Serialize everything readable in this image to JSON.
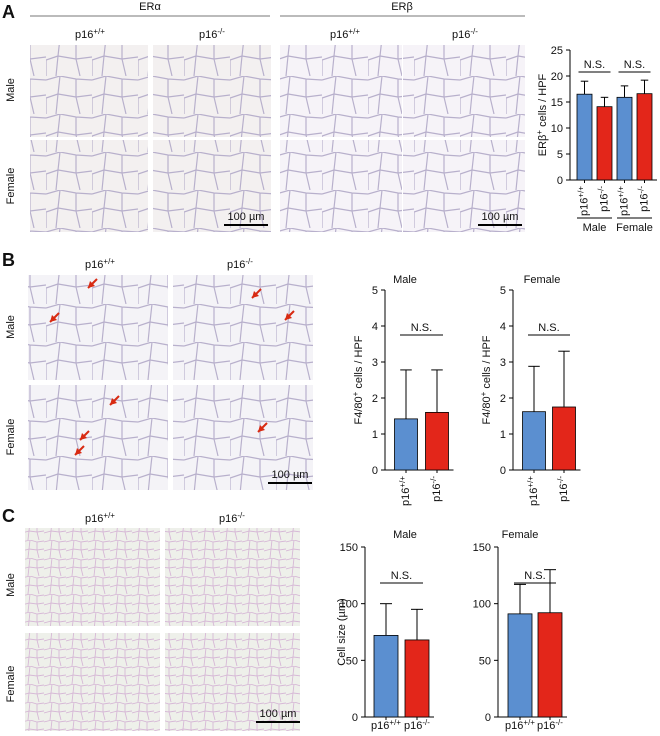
{
  "figure": {
    "panels": [
      "A",
      "B",
      "C"
    ],
    "panel_a": {
      "stains": [
        "ERα",
        "ERβ"
      ],
      "genotypes": [
        {
          "text": "p16",
          "sup": "+/+"
        },
        {
          "text": "p16",
          "sup": "-/-"
        }
      ],
      "rows": [
        "Male",
        "Female"
      ],
      "scale_bar": "100 µm"
    },
    "panel_b": {
      "genotypes": [
        {
          "text": "p16",
          "sup": "+/+"
        },
        {
          "text": "p16",
          "sup": "-/-"
        }
      ],
      "rows": [
        "Male",
        "Female"
      ],
      "scale_bar": "100 µm"
    },
    "panel_c": {
      "genotypes": [
        {
          "text": "p16",
          "sup": "+/+"
        },
        {
          "text": "p16",
          "sup": "-/-"
        }
      ],
      "rows": [
        "Male",
        "Female"
      ],
      "scale_bar": "100 µm"
    }
  },
  "chart_data": [
    {
      "type": "bar",
      "y_label": {
        "text": "ERβ",
        "sup": "+",
        "after": " cells / HPF"
      },
      "categories": [
        {
          "text": "p16",
          "sup": "+/+"
        },
        {
          "text": "p16",
          "sup": "-/-"
        },
        {
          "text": "p16",
          "sup": "+/+"
        },
        {
          "text": "p16",
          "sup": "-/-"
        }
      ],
      "groups": [
        "Male",
        "Female"
      ],
      "values": [
        16.5,
        14.1,
        15.9,
        16.6
      ],
      "errors": [
        2.5,
        1.8,
        2.2,
        2.6
      ],
      "colors": [
        "#5b8fd0",
        "#e3261a",
        "#5b8fd0",
        "#e3261a"
      ],
      "annotations": [
        "N.S.",
        "N.S."
      ],
      "ylim": [
        0,
        25
      ],
      "yticks": [
        0,
        5,
        10,
        15,
        20,
        25
      ]
    },
    {
      "type": "bar",
      "title": "Male",
      "y_label": {
        "text": "F4/80",
        "sup": "+",
        "after": " cells / HPF"
      },
      "categories": [
        {
          "text": "p16",
          "sup": "+/+"
        },
        {
          "text": "p16",
          "sup": "-/-"
        }
      ],
      "values": [
        1.42,
        1.6
      ],
      "errors": [
        1.36,
        1.18
      ],
      "colors": [
        "#5b8fd0",
        "#e3261a"
      ],
      "annotations": [
        "N.S."
      ],
      "ylim": [
        0,
        5
      ],
      "yticks": [
        0,
        1,
        2,
        3,
        4,
        5
      ]
    },
    {
      "type": "bar",
      "title": "Female",
      "y_label": {
        "text": "F4/80",
        "sup": "+",
        "after": " cells / HPF"
      },
      "categories": [
        {
          "text": "p16",
          "sup": "+/+"
        },
        {
          "text": "p16",
          "sup": "-/-"
        }
      ],
      "values": [
        1.62,
        1.75
      ],
      "errors": [
        1.26,
        1.55
      ],
      "colors": [
        "#5b8fd0",
        "#e3261a"
      ],
      "annotations": [
        "N.S."
      ],
      "ylim": [
        0,
        5
      ],
      "yticks": [
        0,
        1,
        2,
        3,
        4,
        5
      ]
    },
    {
      "type": "bar",
      "title": "Male",
      "y_label": {
        "text": "Cell size (µm)"
      },
      "categories": [
        {
          "text": "p16",
          "sup": "+/+"
        },
        {
          "text": "p16",
          "sup": "-/-"
        }
      ],
      "values": [
        72,
        68
      ],
      "errors": [
        28,
        27
      ],
      "colors": [
        "#5b8fd0",
        "#e3261a"
      ],
      "annotations": [
        "N.S."
      ],
      "ylim": [
        0,
        150
      ],
      "yticks": [
        0,
        50,
        100,
        150
      ]
    },
    {
      "type": "bar",
      "title": "Female",
      "categories": [
        {
          "text": "p16",
          "sup": "+/+"
        },
        {
          "text": "p16",
          "sup": "-/-"
        }
      ],
      "values": [
        91,
        92
      ],
      "errors": [
        26,
        38
      ],
      "colors": [
        "#5b8fd0",
        "#e3261a"
      ],
      "annotations": [
        "N.S."
      ],
      "ylim": [
        0,
        150
      ],
      "yticks": [
        0,
        50,
        100,
        150
      ]
    }
  ]
}
